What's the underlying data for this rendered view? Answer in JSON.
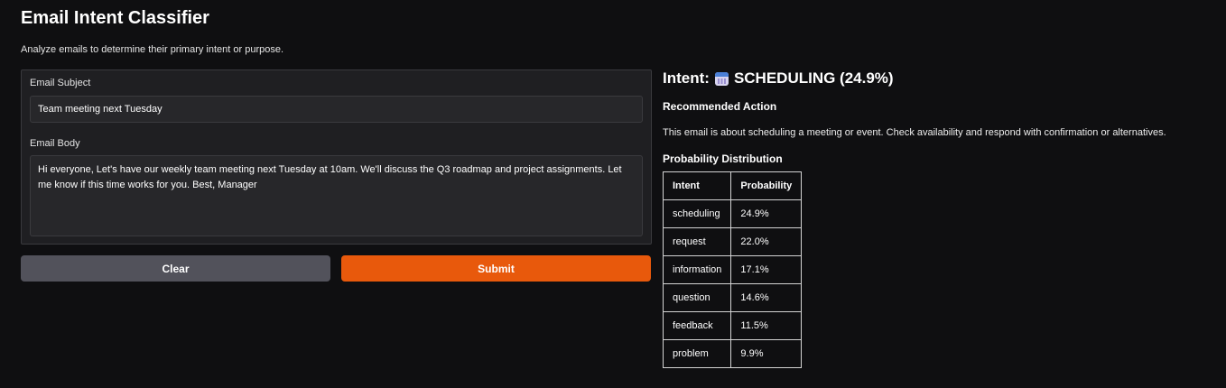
{
  "header": {
    "title": "Email Intent Classifier",
    "subtitle": "Analyze emails to determine their primary intent or purpose."
  },
  "form": {
    "subject_label": "Email Subject",
    "subject_value": "Team meeting next Tuesday",
    "body_label": "Email Body",
    "body_value": "Hi everyone, Let's have our weekly team meeting next Tuesday at 10am. We'll discuss the Q3 roadmap and project assignments. Let me know if this time works for you. Best, Manager",
    "clear_label": "Clear",
    "submit_label": "Submit"
  },
  "result": {
    "intent_prefix": "Intent:",
    "intent_icon": "calendar-icon",
    "intent_value": "SCHEDULING (24.9%)",
    "recommended_heading": "Recommended Action",
    "recommended_text": "This email is about scheduling a meeting or event. Check availability and respond with confirmation or alternatives.",
    "distribution_heading": "Probability Distribution",
    "table": {
      "headers": [
        "Intent",
        "Probability"
      ],
      "rows": [
        [
          "scheduling",
          "24.9%"
        ],
        [
          "request",
          "22.0%"
        ],
        [
          "information",
          "17.1%"
        ],
        [
          "question",
          "14.6%"
        ],
        [
          "feedback",
          "11.5%"
        ],
        [
          "problem",
          "9.9%"
        ]
      ]
    }
  },
  "colors": {
    "accent": "#e8590c",
    "secondary_button": "#52525b",
    "background": "#0f0f11"
  }
}
